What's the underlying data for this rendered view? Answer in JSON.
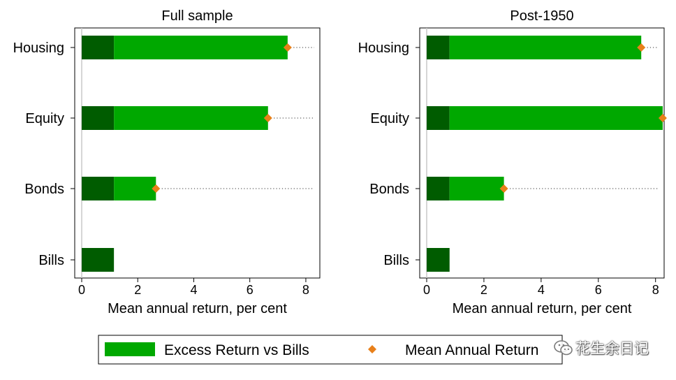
{
  "chart_data": [
    {
      "type": "bar",
      "orientation": "horizontal",
      "stacked": true,
      "title": "Full sample",
      "xlabel": "Mean annual return, per cent",
      "ylabel": "",
      "xlim": [
        0,
        8.5
      ],
      "xticks": [
        0,
        2,
        4,
        6,
        8
      ],
      "categories": [
        "Housing",
        "Equity",
        "Bonds",
        "Bills"
      ],
      "series": [
        {
          "values": [
            1.15,
            1.15,
            1.15,
            1.15
          ],
          "color": "#005c00"
        },
        {
          "name": "Excess Return vs Bills",
          "values": [
            6.2,
            5.5,
            1.5,
            0
          ],
          "color": "#00a800"
        }
      ],
      "markers": {
        "name": "Mean Annual Return",
        "values": [
          7.35,
          6.65,
          2.65,
          null
        ],
        "color": "#e8801a",
        "shape": "diamond"
      },
      "grid": false
    },
    {
      "type": "bar",
      "orientation": "horizontal",
      "stacked": true,
      "title": "Post-1950",
      "xlabel": "Mean annual return, per cent",
      "ylabel": "",
      "xlim": [
        0,
        8.3
      ],
      "xticks": [
        0,
        2,
        4,
        6,
        8
      ],
      "categories": [
        "Housing",
        "Equity",
        "Bonds",
        "Bills"
      ],
      "series": [
        {
          "values": [
            0.8,
            0.8,
            0.8,
            0.8
          ],
          "color": "#005c00"
        },
        {
          "name": "Excess Return vs Bills",
          "values": [
            6.7,
            7.45,
            1.9,
            0
          ],
          "color": "#00a800"
        }
      ],
      "markers": {
        "name": "Mean Annual Return",
        "values": [
          7.5,
          8.25,
          2.7,
          null
        ],
        "color": "#e8801a",
        "shape": "diamond"
      },
      "grid": false
    }
  ],
  "legend": {
    "placement": "bottom",
    "items": [
      {
        "label": "Excess Return vs Bills",
        "kind": "bar",
        "color": "#00a800"
      },
      {
        "label": "Mean Annual Return",
        "kind": "diamond",
        "color": "#e8801a"
      }
    ]
  },
  "watermark": {
    "text": "花生余日记",
    "icon": "wechat-icon"
  }
}
